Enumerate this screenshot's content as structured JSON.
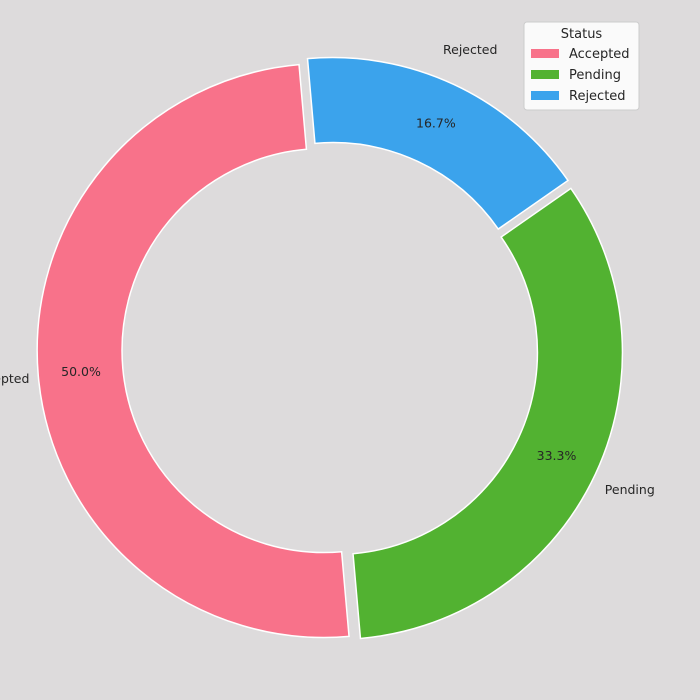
{
  "chart_data": {
    "type": "pie",
    "variant": "donut",
    "categories": [
      "Accepted",
      "Pending",
      "Rejected"
    ],
    "values": [
      50.0,
      33.3,
      16.7
    ],
    "percent_labels": [
      "50.0%",
      "33.3%",
      "16.7%"
    ],
    "colors": [
      "#f8728a",
      "#52b231",
      "#3ba3ec"
    ],
    "exploded": true,
    "legend": {
      "title": "Status",
      "placement": "top-right",
      "entries": [
        "Accepted",
        "Pending",
        "Rejected"
      ]
    },
    "background_color": "#dddbdc"
  }
}
